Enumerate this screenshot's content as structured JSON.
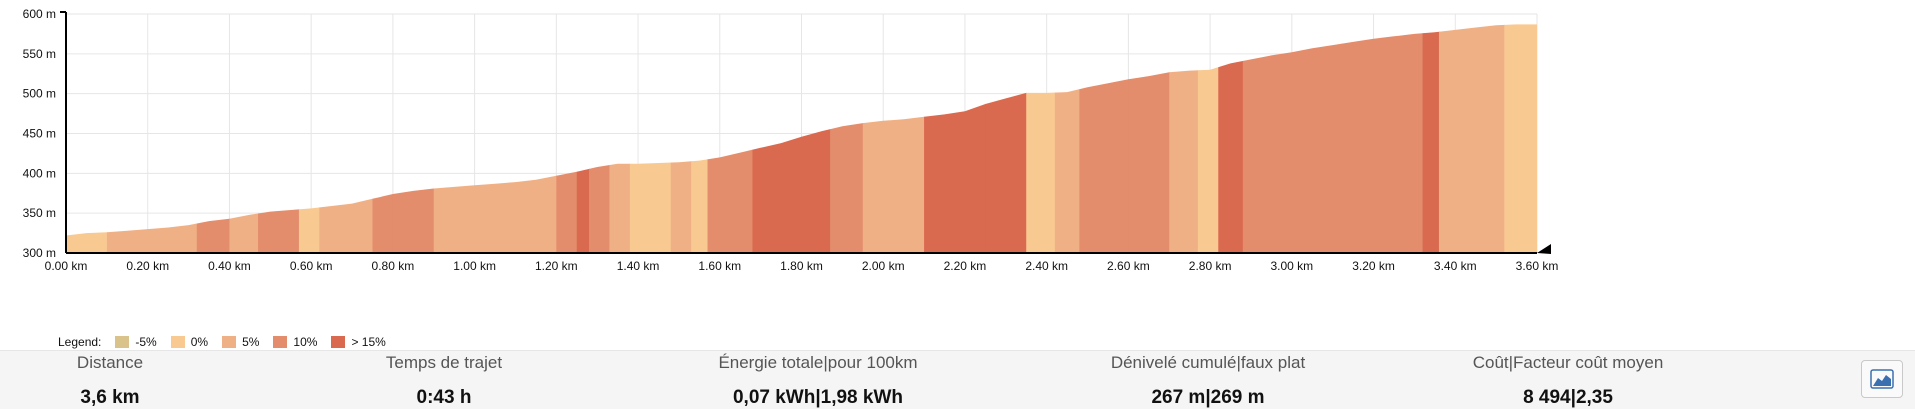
{
  "chart_data": {
    "type": "area",
    "xlabel": "",
    "ylabel": "",
    "x_unit": "km",
    "y_unit": "m",
    "xlim": [
      0,
      3.6
    ],
    "ylim": [
      300,
      600
    ],
    "grid": true,
    "x_ticks": [
      "0.00 km",
      "0.20 km",
      "0.40 km",
      "0.60 km",
      "0.80 km",
      "1.00 km",
      "1.20 km",
      "1.40 km",
      "1.60 km",
      "1.80 km",
      "2.00 km",
      "2.20 km",
      "2.40 km",
      "2.60 km",
      "2.80 km",
      "3.00 km",
      "3.20 km",
      "3.40 km",
      "3.60 km"
    ],
    "y_ticks": [
      "300 m",
      "350 m",
      "400 m",
      "450 m",
      "500 m",
      "550 m",
      "600 m"
    ],
    "elevation_profile": [
      {
        "x": 0.0,
        "y": 322
      },
      {
        "x": 0.05,
        "y": 325
      },
      {
        "x": 0.1,
        "y": 326
      },
      {
        "x": 0.15,
        "y": 328
      },
      {
        "x": 0.2,
        "y": 330
      },
      {
        "x": 0.25,
        "y": 332
      },
      {
        "x": 0.3,
        "y": 335
      },
      {
        "x": 0.35,
        "y": 340
      },
      {
        "x": 0.4,
        "y": 343
      },
      {
        "x": 0.45,
        "y": 348
      },
      {
        "x": 0.5,
        "y": 352
      },
      {
        "x": 0.55,
        "y": 354
      },
      {
        "x": 0.6,
        "y": 356
      },
      {
        "x": 0.65,
        "y": 359
      },
      {
        "x": 0.7,
        "y": 362
      },
      {
        "x": 0.75,
        "y": 368
      },
      {
        "x": 0.8,
        "y": 374
      },
      {
        "x": 0.85,
        "y": 378
      },
      {
        "x": 0.9,
        "y": 381
      },
      {
        "x": 0.95,
        "y": 383
      },
      {
        "x": 1.0,
        "y": 385
      },
      {
        "x": 1.05,
        "y": 387
      },
      {
        "x": 1.1,
        "y": 389
      },
      {
        "x": 1.15,
        "y": 392
      },
      {
        "x": 1.2,
        "y": 397
      },
      {
        "x": 1.25,
        "y": 402
      },
      {
        "x": 1.3,
        "y": 408
      },
      {
        "x": 1.35,
        "y": 412
      },
      {
        "x": 1.4,
        "y": 412
      },
      {
        "x": 1.45,
        "y": 413
      },
      {
        "x": 1.5,
        "y": 414
      },
      {
        "x": 1.55,
        "y": 416
      },
      {
        "x": 1.6,
        "y": 420
      },
      {
        "x": 1.65,
        "y": 426
      },
      {
        "x": 1.7,
        "y": 432
      },
      {
        "x": 1.75,
        "y": 438
      },
      {
        "x": 1.8,
        "y": 446
      },
      {
        "x": 1.85,
        "y": 453
      },
      {
        "x": 1.9,
        "y": 459
      },
      {
        "x": 1.95,
        "y": 463
      },
      {
        "x": 2.0,
        "y": 466
      },
      {
        "x": 2.05,
        "y": 468
      },
      {
        "x": 2.1,
        "y": 471
      },
      {
        "x": 2.15,
        "y": 474
      },
      {
        "x": 2.2,
        "y": 478
      },
      {
        "x": 2.25,
        "y": 487
      },
      {
        "x": 2.3,
        "y": 494
      },
      {
        "x": 2.35,
        "y": 501
      },
      {
        "x": 2.4,
        "y": 501
      },
      {
        "x": 2.45,
        "y": 502
      },
      {
        "x": 2.5,
        "y": 508
      },
      {
        "x": 2.55,
        "y": 513
      },
      {
        "x": 2.6,
        "y": 518
      },
      {
        "x": 2.65,
        "y": 522
      },
      {
        "x": 2.7,
        "y": 527
      },
      {
        "x": 2.75,
        "y": 529
      },
      {
        "x": 2.8,
        "y": 530
      },
      {
        "x": 2.85,
        "y": 538
      },
      {
        "x": 2.9,
        "y": 543
      },
      {
        "x": 2.95,
        "y": 548
      },
      {
        "x": 3.0,
        "y": 552
      },
      {
        "x": 3.05,
        "y": 557
      },
      {
        "x": 3.1,
        "y": 561
      },
      {
        "x": 3.15,
        "y": 565
      },
      {
        "x": 3.2,
        "y": 569
      },
      {
        "x": 3.25,
        "y": 572
      },
      {
        "x": 3.3,
        "y": 575
      },
      {
        "x": 3.35,
        "y": 577
      },
      {
        "x": 3.4,
        "y": 580
      },
      {
        "x": 3.45,
        "y": 583
      },
      {
        "x": 3.5,
        "y": 586
      },
      {
        "x": 3.55,
        "y": 587
      },
      {
        "x": 3.6,
        "y": 587
      }
    ],
    "gradient_bands": [
      {
        "from": 0.0,
        "to": 0.1,
        "cls": 1
      },
      {
        "from": 0.1,
        "to": 0.2,
        "cls": 2
      },
      {
        "from": 0.2,
        "to": 0.32,
        "cls": 2
      },
      {
        "from": 0.32,
        "to": 0.4,
        "cls": 3
      },
      {
        "from": 0.4,
        "to": 0.47,
        "cls": 2
      },
      {
        "from": 0.47,
        "to": 0.57,
        "cls": 3
      },
      {
        "from": 0.57,
        "to": 0.62,
        "cls": 1
      },
      {
        "from": 0.62,
        "to": 0.75,
        "cls": 2
      },
      {
        "from": 0.75,
        "to": 0.8,
        "cls": 3
      },
      {
        "from": 0.8,
        "to": 0.9,
        "cls": 3
      },
      {
        "from": 0.9,
        "to": 1.1,
        "cls": 2
      },
      {
        "from": 1.1,
        "to": 1.2,
        "cls": 2
      },
      {
        "from": 1.2,
        "to": 1.25,
        "cls": 3
      },
      {
        "from": 1.25,
        "to": 1.28,
        "cls": 4
      },
      {
        "from": 1.28,
        "to": 1.33,
        "cls": 3
      },
      {
        "from": 1.33,
        "to": 1.38,
        "cls": 2
      },
      {
        "from": 1.38,
        "to": 1.48,
        "cls": 1
      },
      {
        "from": 1.48,
        "to": 1.53,
        "cls": 2
      },
      {
        "from": 1.53,
        "to": 1.57,
        "cls": 1
      },
      {
        "from": 1.57,
        "to": 1.63,
        "cls": 3
      },
      {
        "from": 1.63,
        "to": 1.68,
        "cls": 3
      },
      {
        "from": 1.68,
        "to": 1.8,
        "cls": 4
      },
      {
        "from": 1.8,
        "to": 1.87,
        "cls": 4
      },
      {
        "from": 1.87,
        "to": 1.95,
        "cls": 3
      },
      {
        "from": 1.95,
        "to": 2.1,
        "cls": 2
      },
      {
        "from": 2.1,
        "to": 2.25,
        "cls": 4
      },
      {
        "from": 2.25,
        "to": 2.35,
        "cls": 4
      },
      {
        "from": 2.35,
        "to": 2.42,
        "cls": 1
      },
      {
        "from": 2.42,
        "to": 2.48,
        "cls": 2
      },
      {
        "from": 2.48,
        "to": 2.6,
        "cls": 3
      },
      {
        "from": 2.6,
        "to": 2.7,
        "cls": 3
      },
      {
        "from": 2.7,
        "to": 2.77,
        "cls": 2
      },
      {
        "from": 2.77,
        "to": 2.82,
        "cls": 1
      },
      {
        "from": 2.82,
        "to": 2.88,
        "cls": 4
      },
      {
        "from": 2.88,
        "to": 3.0,
        "cls": 3
      },
      {
        "from": 3.0,
        "to": 3.12,
        "cls": 3
      },
      {
        "from": 3.12,
        "to": 3.22,
        "cls": 3
      },
      {
        "from": 3.22,
        "to": 3.32,
        "cls": 3
      },
      {
        "from": 3.32,
        "to": 3.36,
        "cls": 4
      },
      {
        "from": 3.36,
        "to": 3.45,
        "cls": 2
      },
      {
        "from": 3.45,
        "to": 3.52,
        "cls": 2
      },
      {
        "from": 3.52,
        "to": 3.6,
        "cls": 1
      }
    ],
    "legend": {
      "title": "Legend:",
      "items": [
        {
          "label": "-5%",
          "color": "#d9c38a"
        },
        {
          "label": "0%",
          "color": "#f9c992"
        },
        {
          "label": "5%",
          "color": "#f0b085"
        },
        {
          "label": "10%",
          "color": "#e38d6c"
        },
        {
          "label": "> 15%",
          "color": "#d9694f"
        }
      ]
    }
  },
  "stats": [
    {
      "label": "Distance",
      "value": "3,6 km"
    },
    {
      "label": "Temps de trajet",
      "value": "0:43 h"
    },
    {
      "label": "Énergie totale|pour 100km",
      "value": "0,07 kWh|1,98 kWh"
    },
    {
      "label": "Dénivelé cumulé|faux plat",
      "value": "267 m|269 m"
    },
    {
      "label": "Coût|Facteur coût moyen",
      "value": "8 494|2,35"
    }
  ],
  "colors": {
    "band_light": "#f9c992",
    "band_mid": "#f0b085",
    "band_strong": "#e38d6c",
    "band_steep": "#d9694f",
    "grid": "#e6e6e6"
  },
  "icons": {
    "chart_button": "area-chart-icon"
  }
}
